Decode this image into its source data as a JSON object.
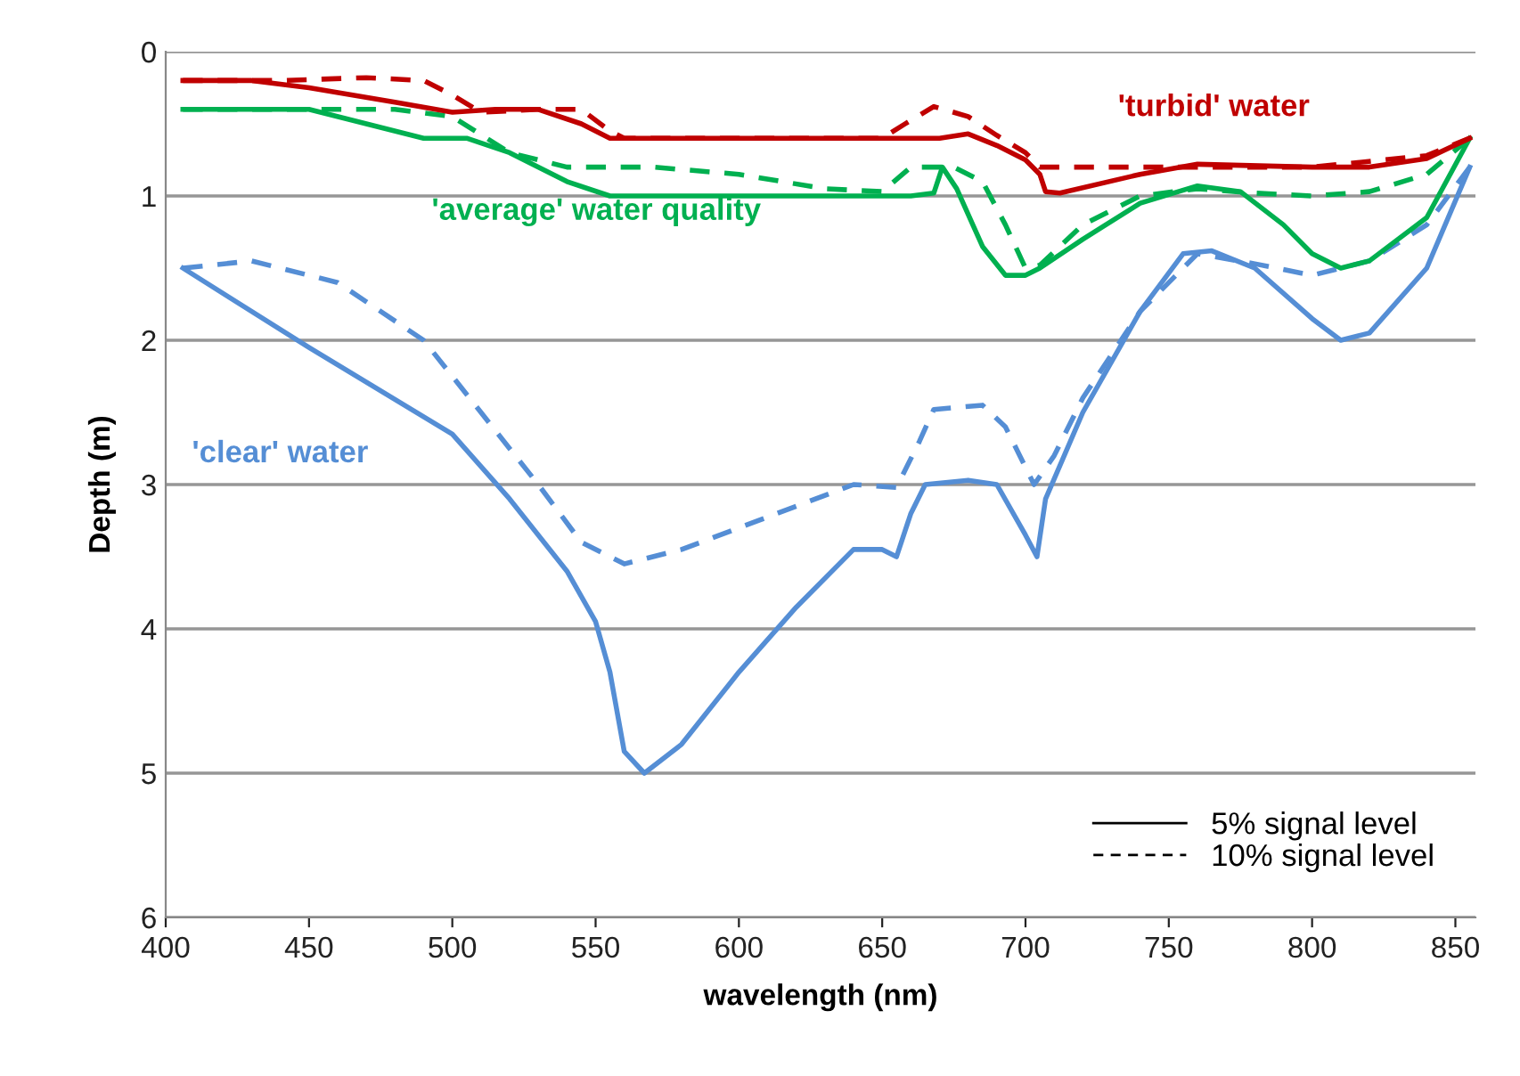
{
  "chart_data": {
    "type": "line",
    "xlabel": "wavelength (nm)",
    "ylabel": "Depth (m)",
    "xlim": [
      400,
      857
    ],
    "xticks": [
      400,
      450,
      500,
      550,
      600,
      650,
      700,
      750,
      800,
      850
    ],
    "ylim": [
      6,
      0
    ],
    "yticks": [
      0,
      1,
      2,
      3,
      4,
      5,
      6
    ],
    "grid": "y",
    "annotations": [
      "'turbid' water",
      "'average' water quality",
      "'clear' water",
      "5% signal level",
      "10% signal level"
    ],
    "series": [
      {
        "color": "#558ed5",
        "line_style": "solid",
        "x": [
          406,
          450,
          500,
          520,
          540,
          550,
          555,
          560,
          567,
          580,
          600,
          620,
          640,
          650,
          655,
          660,
          665,
          680,
          690,
          700,
          704,
          707,
          720,
          740,
          755,
          765,
          780,
          800,
          810,
          820,
          840,
          855
        ],
        "values": [
          1.5,
          2.05,
          2.65,
          3.1,
          3.6,
          3.95,
          4.3,
          4.85,
          5.0,
          4.8,
          4.3,
          3.85,
          3.45,
          3.45,
          3.5,
          3.2,
          3.0,
          2.97,
          3.0,
          3.35,
          3.5,
          3.1,
          2.5,
          1.8,
          1.4,
          1.38,
          1.5,
          1.85,
          2.0,
          1.95,
          1.5,
          0.8
        ]
      },
      {
        "color": "#558ed5",
        "line_style": "dashed",
        "x": [
          406,
          430,
          460,
          490,
          510,
          530,
          545,
          560,
          580,
          600,
          620,
          640,
          655,
          663,
          668,
          685,
          693,
          703,
          710,
          720,
          740,
          760,
          780,
          800,
          820,
          840,
          855
        ],
        "values": [
          1.5,
          1.45,
          1.6,
          2.0,
          2.5,
          3.0,
          3.4,
          3.55,
          3.45,
          3.3,
          3.15,
          3.0,
          3.02,
          2.7,
          2.48,
          2.45,
          2.6,
          3.0,
          2.8,
          2.4,
          1.8,
          1.4,
          1.47,
          1.55,
          1.45,
          1.2,
          0.8
        ]
      },
      {
        "color": "#00b050",
        "line_style": "solid",
        "x": [
          406,
          450,
          470,
          490,
          505,
          520,
          540,
          555,
          600,
          660,
          668,
          671,
          676,
          685,
          693,
          700,
          705,
          720,
          740,
          760,
          775,
          790,
          800,
          810,
          820,
          840,
          855
        ],
        "values": [
          0.4,
          0.4,
          0.5,
          0.6,
          0.6,
          0.7,
          0.9,
          1.0,
          1.0,
          1.0,
          0.98,
          0.8,
          0.95,
          1.35,
          1.55,
          1.55,
          1.5,
          1.3,
          1.05,
          0.93,
          0.97,
          1.2,
          1.4,
          1.5,
          1.45,
          1.15,
          0.6
        ]
      },
      {
        "color": "#00b050",
        "line_style": "dashed",
        "x": [
          406,
          460,
          480,
          500,
          520,
          540,
          570,
          600,
          630,
          650,
          660,
          675,
          685,
          693,
          700,
          705,
          720,
          740,
          760,
          780,
          800,
          820,
          840,
          855
        ],
        "values": [
          0.4,
          0.4,
          0.4,
          0.45,
          0.7,
          0.8,
          0.8,
          0.85,
          0.95,
          0.97,
          0.8,
          0.8,
          0.9,
          1.2,
          1.5,
          1.48,
          1.2,
          1.0,
          0.95,
          0.98,
          1.0,
          0.97,
          0.85,
          0.6
        ]
      },
      {
        "color": "#c00000",
        "line_style": "solid",
        "x": [
          406,
          430,
          450,
          480,
          500,
          515,
          530,
          545,
          555,
          600,
          650,
          670,
          680,
          690,
          700,
          705,
          707,
          712,
          740,
          760,
          800,
          820,
          840,
          855
        ],
        "values": [
          0.2,
          0.2,
          0.25,
          0.35,
          0.42,
          0.4,
          0.4,
          0.5,
          0.6,
          0.6,
          0.6,
          0.6,
          0.57,
          0.65,
          0.75,
          0.85,
          0.97,
          0.98,
          0.85,
          0.78,
          0.8,
          0.8,
          0.74,
          0.6
        ]
      },
      {
        "color": "#c00000",
        "line_style": "dashed",
        "x": [
          406,
          440,
          470,
          490,
          500,
          510,
          530,
          545,
          555,
          560,
          600,
          650,
          658,
          668,
          680,
          690,
          700,
          705,
          740,
          800,
          840,
          855
        ],
        "values": [
          0.2,
          0.2,
          0.18,
          0.2,
          0.3,
          0.42,
          0.4,
          0.4,
          0.55,
          0.6,
          0.6,
          0.6,
          0.5,
          0.38,
          0.45,
          0.58,
          0.7,
          0.8,
          0.8,
          0.8,
          0.72,
          0.6
        ]
      }
    ]
  }
}
